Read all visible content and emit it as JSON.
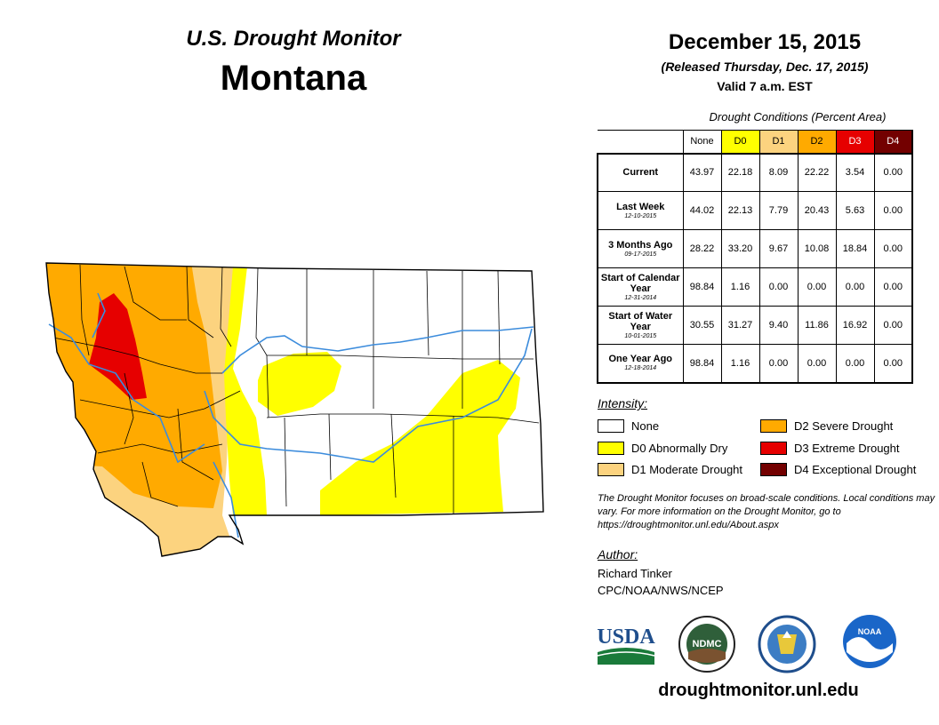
{
  "header": {
    "program": "U.S. Drought Monitor",
    "state": "Montana",
    "date": "December 15, 2015",
    "released": "(Released Thursday, Dec. 17, 2015)",
    "valid": "Valid 7 a.m. EST"
  },
  "table": {
    "caption": "Drought Conditions (Percent Area)",
    "columns": [
      "None",
      "D0",
      "D1",
      "D2",
      "D3",
      "D4"
    ],
    "column_colors": [
      "#ffffff",
      "#ffff00",
      "#fcd37f",
      "#ffaa00",
      "#e60000",
      "#730000"
    ],
    "rows": [
      {
        "label": "Current",
        "date": "",
        "values": [
          "43.97",
          "22.18",
          "8.09",
          "22.22",
          "3.54",
          "0.00"
        ]
      },
      {
        "label": "Last Week",
        "date": "12-10-2015",
        "values": [
          "44.02",
          "22.13",
          "7.79",
          "20.43",
          "5.63",
          "0.00"
        ]
      },
      {
        "label": "3 Months Ago",
        "date": "09-17-2015",
        "values": [
          "28.22",
          "33.20",
          "9.67",
          "10.08",
          "18.84",
          "0.00"
        ]
      },
      {
        "label": "Start of Calendar Year",
        "date": "12-31-2014",
        "values": [
          "98.84",
          "1.16",
          "0.00",
          "0.00",
          "0.00",
          "0.00"
        ]
      },
      {
        "label": "Start of Water Year",
        "date": "10-01-2015",
        "values": [
          "30.55",
          "31.27",
          "9.40",
          "11.86",
          "16.92",
          "0.00"
        ]
      },
      {
        "label": "One Year Ago",
        "date": "12-18-2014",
        "values": [
          "98.84",
          "1.16",
          "0.00",
          "0.00",
          "0.00",
          "0.00"
        ]
      }
    ]
  },
  "legend": {
    "title": "Intensity:",
    "items": [
      {
        "label": "None",
        "color": "#ffffff"
      },
      {
        "label": "D0 Abnormally Dry",
        "color": "#ffff00"
      },
      {
        "label": "D1 Moderate Drought",
        "color": "#fcd37f"
      },
      {
        "label": "D2 Severe Drought",
        "color": "#ffaa00"
      },
      {
        "label": "D3 Extreme Drought",
        "color": "#e60000"
      },
      {
        "label": "D4 Exceptional Drought",
        "color": "#730000"
      }
    ]
  },
  "note": "The Drought Monitor focuses on broad-scale conditions. Local conditions may vary. For more information on the Drought Monitor, go to https://droughtmonitor.unl.edu/About.aspx",
  "author": {
    "title": "Author:",
    "name": "Richard Tinker",
    "org": "CPC/NOAA/NWS/NCEP"
  },
  "logos": {
    "usda": "USDA",
    "ndmc": "NDMC",
    "noaa": "NOAA"
  },
  "website": "droughtmonitor.unl.edu",
  "map": {
    "fill_colors": {
      "none": "#ffffff",
      "d0": "#ffff00",
      "d1": "#fcd37f",
      "d2": "#ffaa00",
      "d3": "#e60000"
    },
    "river_color": "#3c8cdc",
    "border_color": "#000000"
  }
}
